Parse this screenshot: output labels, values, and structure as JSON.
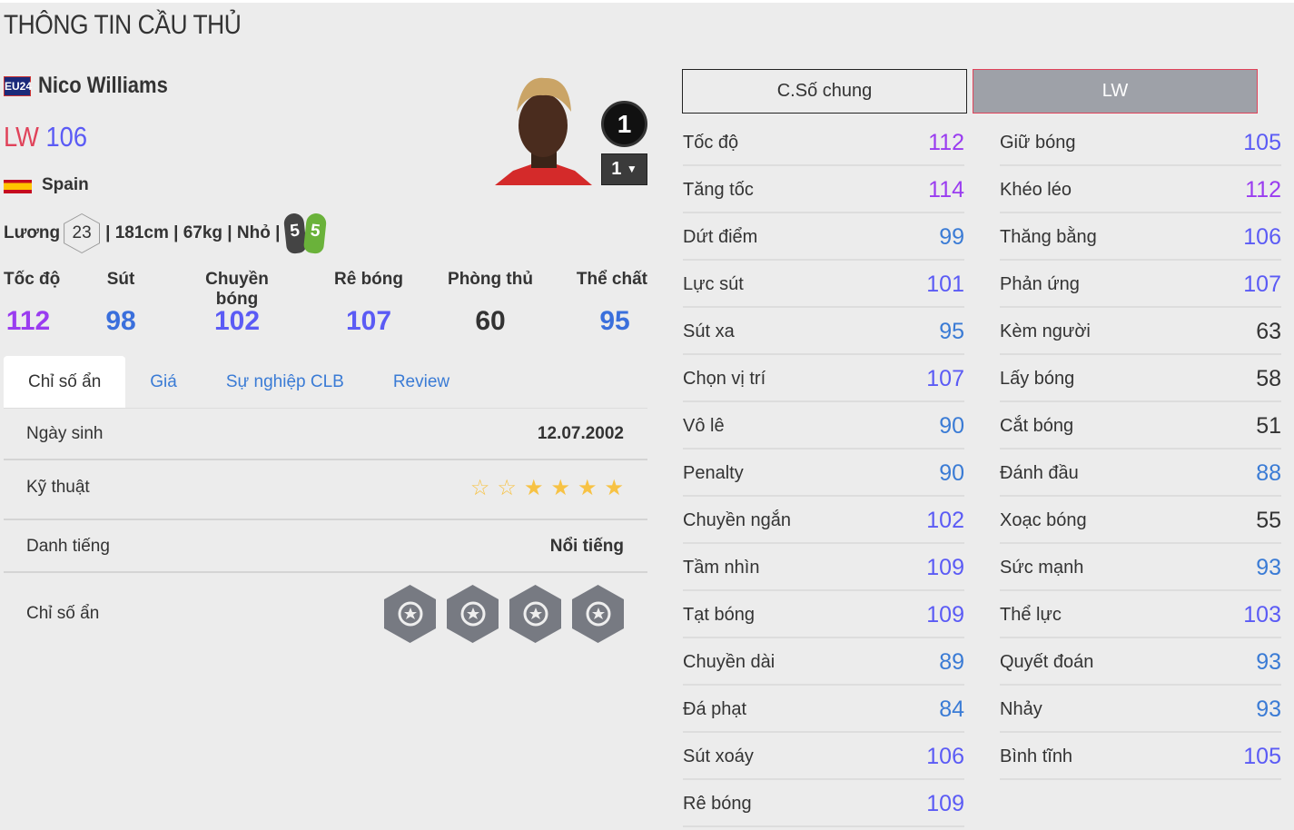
{
  "title": "THÔNG TIN CẦU THỦ",
  "player": {
    "season_badge": "EU24",
    "name": "Nico Williams",
    "position": "LW",
    "ovr": "106",
    "nation": "Spain",
    "salary_label": "Lương",
    "salary": "23",
    "info": "| 181cm | 67kg | Nhỏ |",
    "left_foot": "5",
    "right_foot": "5",
    "enhance_level": "1",
    "upgrade_level": "1"
  },
  "summary": [
    {
      "label": "Tốc độ",
      "value": "112",
      "color": "#9a3cf0"
    },
    {
      "label": "Sút",
      "value": "98",
      "color": "#3a6fdc"
    },
    {
      "label": "Chuyền bóng",
      "value": "102",
      "color": "#5b5bf5"
    },
    {
      "label": "Rê bóng",
      "value": "107",
      "color": "#5b5bf5"
    },
    {
      "label": "Phòng thủ",
      "value": "60",
      "color": "#333333"
    },
    {
      "label": "Thể chất",
      "value": "95",
      "color": "#3a6fdc"
    }
  ],
  "tabs": [
    "Chỉ số ẩn",
    "Giá",
    "Sự nghiệp CLB",
    "Review"
  ],
  "details": {
    "birth_label": "Ngày sinh",
    "birth": "12.07.2002",
    "skill_label": "Kỹ thuật",
    "skill_stars": 4,
    "skill_max": 6,
    "fame_label": "Danh tiếng",
    "fame": "Nổi tiếng",
    "traits_label": "Chỉ số ẩn",
    "traits": [
      "flair-icon",
      "speed-dribbler-icon",
      "finesse-shot-icon",
      "technical-dribbler-icon"
    ]
  },
  "stat_tabs": [
    "C.Số chung",
    "LW"
  ],
  "stats_left": [
    [
      "Tốc độ",
      "112"
    ],
    [
      "Tăng tốc",
      "114"
    ],
    [
      "Dứt điểm",
      "99"
    ],
    [
      "Lực sút",
      "101"
    ],
    [
      "Sút xa",
      "95"
    ],
    [
      "Chọn vị trí",
      "107"
    ],
    [
      "Vô lê",
      "90"
    ],
    [
      "Penalty",
      "90"
    ],
    [
      "Chuyền ngắn",
      "102"
    ],
    [
      "Tầm nhìn",
      "109"
    ],
    [
      "Tạt bóng",
      "109"
    ],
    [
      "Chuyền dài",
      "89"
    ],
    [
      "Đá phạt",
      "84"
    ],
    [
      "Sút xoáy",
      "106"
    ],
    [
      "Rê bóng",
      "109"
    ]
  ],
  "stats_right": [
    [
      "Giữ bóng",
      "105"
    ],
    [
      "Khéo léo",
      "112"
    ],
    [
      "Thăng bằng",
      "106"
    ],
    [
      "Phản ứng",
      "107"
    ],
    [
      "Kèm người",
      "63"
    ],
    [
      "Lấy bóng",
      "58"
    ],
    [
      "Cắt bóng",
      "51"
    ],
    [
      "Đánh đầu",
      "88"
    ],
    [
      "Xoạc bóng",
      "55"
    ],
    [
      "Sức mạnh",
      "93"
    ],
    [
      "Thể lực",
      "103"
    ],
    [
      "Quyết đoán",
      "93"
    ],
    [
      "Nhảy",
      "93"
    ],
    [
      "Bình tĩnh",
      "105"
    ]
  ],
  "colors": {
    "tier110": "#9a3cf0",
    "tier100": "#5b5bf5",
    "tier80": "#3a7bd5",
    "low": "#333333",
    "accent": "#e0435a"
  }
}
